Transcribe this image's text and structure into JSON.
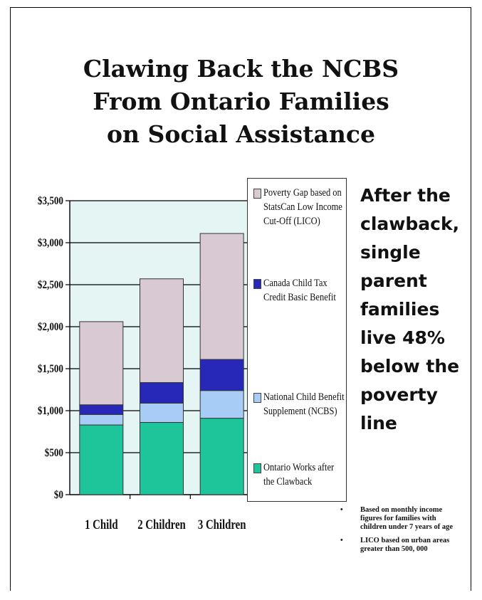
{
  "title_lines": [
    "Clawing Back the NCBS",
    "From Ontario Families",
    "on Social Assistance"
  ],
  "callout_lines": [
    "After the",
    "clawback,",
    "single",
    "parent",
    "families",
    "live 48%",
    "below the",
    "poverty",
    "line"
  ],
  "notes": [
    {
      "bullet": "•",
      "text": "Based on monthly income figures for families with children under 7 years of age"
    },
    {
      "bullet": "•",
      "text": "LICO based on urban areas greater than 500, 000"
    }
  ],
  "legend": [
    {
      "label": "Poverty Gap based on StatsCan Low Income Cut-Off (LICO)",
      "color": "#d9c9d3"
    },
    {
      "label": "Canada Child Tax Credit Basic Benefit",
      "color": "#2828b8"
    },
    {
      "label": "National Child Benefit Supplement (NCBS)",
      "color": "#a7cdf6"
    },
    {
      "label": "Ontario Works after the Clawback",
      "color": "#1fc59a"
    }
  ],
  "chart_data": {
    "type": "bar",
    "stacked": true,
    "categories": [
      "1 Child",
      "2 Children",
      "3 Children"
    ],
    "series": [
      {
        "name": "Ontario Works after the Clawback",
        "color": "#1fc59a",
        "values": [
          830,
          860,
          910
        ]
      },
      {
        "name": "National Child Benefit Supplement (NCBS)",
        "color": "#a7cdf6",
        "values": [
          125,
          230,
          330
        ]
      },
      {
        "name": "Canada Child Tax Credit Basic Benefit",
        "color": "#2828b8",
        "values": [
          115,
          245,
          370
        ]
      },
      {
        "name": "Poverty Gap based on StatsCan Low Income Cut-Off (LICO)",
        "color": "#d9c9d3",
        "values": [
          990,
          1235,
          1500
        ]
      }
    ],
    "y_ticks": [
      "$0",
      "$500",
      "$1,000",
      "$1,500",
      "$2,000",
      "$2,500",
      "$3,000",
      "$3,500"
    ],
    "ylim": [
      0,
      3500
    ],
    "grid": true,
    "plot_background": "#e4f5f4",
    "legend_position": "right"
  }
}
